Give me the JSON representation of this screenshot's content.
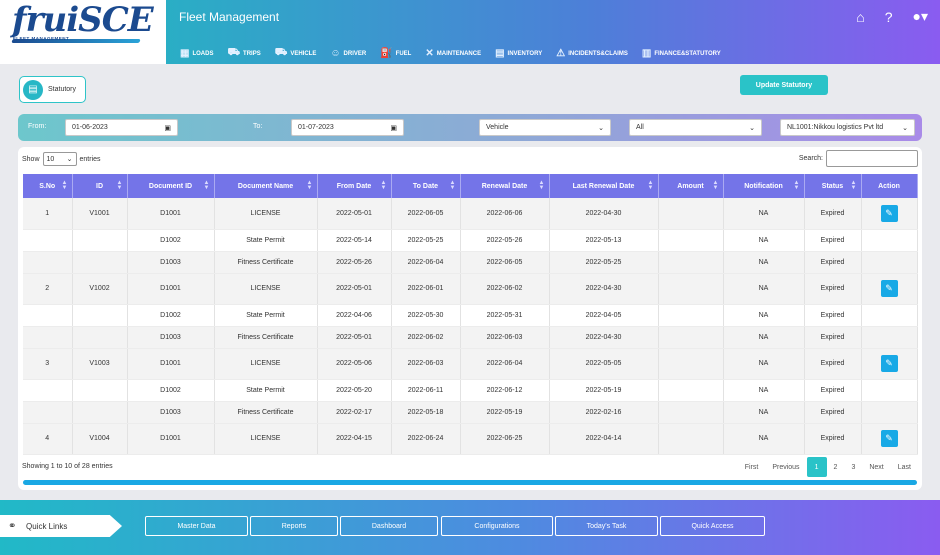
{
  "brand": {
    "logo_text": "fruiSCE",
    "tagline": "FLEET MANAGEMENT"
  },
  "header": {
    "title": "Fleet Management",
    "icons": [
      "home-icon",
      "help-icon",
      "user-icon"
    ],
    "nav": [
      {
        "label": "LOADS",
        "icon": "loads-icon"
      },
      {
        "label": "TRIPS",
        "icon": "trips-icon"
      },
      {
        "label": "VEHICLE",
        "icon": "vehicle-icon"
      },
      {
        "label": "DRIVER",
        "icon": "driver-icon"
      },
      {
        "label": "FUEL",
        "icon": "fuel-icon"
      },
      {
        "label": "MAINTENANCE",
        "icon": "maintenance-icon"
      },
      {
        "label": "INVENTORY",
        "icon": "inventory-icon"
      },
      {
        "label": "INCIDENTS&CLAIMS",
        "icon": "incidents-icon"
      },
      {
        "label": "FINANCE&STATUTORY",
        "icon": "finance-icon"
      }
    ]
  },
  "page": {
    "chip_label": "Statutory",
    "update_button": "Update Statutory"
  },
  "filters": {
    "from_label": "From:",
    "from_value": "01-06-2023",
    "to_label": "To:",
    "to_value": "01-07-2023",
    "type_value": "Vehicle",
    "scope_value": "All",
    "company_value": "NL1001:Nikkou logistics Pvt ltd"
  },
  "table_controls": {
    "show_label": "Show",
    "show_value": "10",
    "entries_label": "entries",
    "search_label": "Search:"
  },
  "columns": [
    "S.No",
    "ID",
    "Document ID",
    "Document Name",
    "From Date",
    "To Date",
    "Renewal Date",
    "Last Renewal Date",
    "Amount",
    "Notification",
    "Status",
    "Action"
  ],
  "rows": [
    {
      "sno": "1",
      "id": "V1001",
      "doc": "D1001",
      "name": "LICENSE",
      "from": "2022-05-01",
      "to": "2022-06-05",
      "renewal": "2022-06-06",
      "last": "2022-04-30",
      "amount": "",
      "notif": "NA",
      "status": "Expired",
      "edit": true
    },
    {
      "sno": "",
      "id": "",
      "doc": "D1002",
      "name": "State Permit",
      "from": "2022-05-14",
      "to": "2022-05-25",
      "renewal": "2022-05-26",
      "last": "2022-05-13",
      "amount": "",
      "notif": "NA",
      "status": "Expired",
      "edit": false
    },
    {
      "sno": "",
      "id": "",
      "doc": "D1003",
      "name": "Fitness Certificate",
      "from": "2022-05-26",
      "to": "2022-06-04",
      "renewal": "2022-06-05",
      "last": "2022-05-25",
      "amount": "",
      "notif": "NA",
      "status": "Expired",
      "edit": false
    },
    {
      "sno": "2",
      "id": "V1002",
      "doc": "D1001",
      "name": "LICENSE",
      "from": "2022-05-01",
      "to": "2022-06-01",
      "renewal": "2022-06-02",
      "last": "2022-04-30",
      "amount": "",
      "notif": "NA",
      "status": "Expired",
      "edit": true
    },
    {
      "sno": "",
      "id": "",
      "doc": "D1002",
      "name": "State Permit",
      "from": "2022-04-06",
      "to": "2022-05-30",
      "renewal": "2022-05-31",
      "last": "2022-04-05",
      "amount": "",
      "notif": "NA",
      "status": "Expired",
      "edit": false
    },
    {
      "sno": "",
      "id": "",
      "doc": "D1003",
      "name": "Fitness Certificate",
      "from": "2022-05-01",
      "to": "2022-06-02",
      "renewal": "2022-06-03",
      "last": "2022-04-30",
      "amount": "",
      "notif": "NA",
      "status": "Expired",
      "edit": false
    },
    {
      "sno": "3",
      "id": "V1003",
      "doc": "D1001",
      "name": "LICENSE",
      "from": "2022-05-06",
      "to": "2022-06-03",
      "renewal": "2022-06-04",
      "last": "2022-05-05",
      "amount": "",
      "notif": "NA",
      "status": "Expired",
      "edit": true
    },
    {
      "sno": "",
      "id": "",
      "doc": "D1002",
      "name": "State Permit",
      "from": "2022-05-20",
      "to": "2022-06-11",
      "renewal": "2022-06-12",
      "last": "2022-05-19",
      "amount": "",
      "notif": "NA",
      "status": "Expired",
      "edit": false
    },
    {
      "sno": "",
      "id": "",
      "doc": "D1003",
      "name": "Fitness Certificate",
      "from": "2022-02-17",
      "to": "2022-05-18",
      "renewal": "2022-05-19",
      "last": "2022-02-16",
      "amount": "",
      "notif": "NA",
      "status": "Expired",
      "edit": false
    },
    {
      "sno": "4",
      "id": "V1004",
      "doc": "D1001",
      "name": "LICENSE",
      "from": "2022-04-15",
      "to": "2022-06-24",
      "renewal": "2022-06-25",
      "last": "2022-04-14",
      "amount": "",
      "notif": "NA",
      "status": "Expired",
      "edit": true
    }
  ],
  "pagination": {
    "info": "Showing 1 to 10 of 28 entries",
    "first": "First",
    "previous": "Previous",
    "pages": [
      "1",
      "2",
      "3"
    ],
    "next": "Next",
    "last": "Last"
  },
  "footer": {
    "quick_links": "Quick Links",
    "buttons": [
      "Master Data",
      "Reports",
      "Dashboard",
      "Configurations",
      "Today's Task",
      "Quick Access"
    ]
  }
}
